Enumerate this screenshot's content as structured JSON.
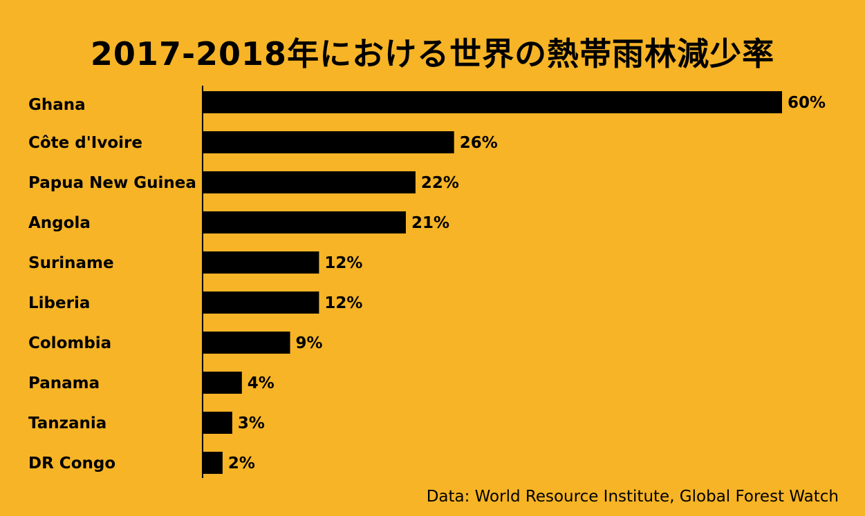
{
  "chart_data": {
    "type": "bar",
    "orientation": "horizontal",
    "title": "2017-2018年における世界の熱帯雨林減少率",
    "categories": [
      "Ghana",
      "Côte d'Ivoire",
      "Papua New Guinea",
      "Angola",
      "Suriname",
      "Liberia",
      "Colombia",
      "Panama",
      "Tanzania",
      "DR Congo"
    ],
    "values": [
      60,
      26,
      22,
      21,
      12,
      12,
      9,
      4,
      3,
      2
    ],
    "value_labels": [
      "60%",
      "26%",
      "22%",
      "21%",
      "12%",
      "12%",
      "9%",
      "4%",
      "3%",
      "2%"
    ],
    "xlim": [
      0,
      60
    ],
    "grid": false,
    "highlight_category": "Ghana",
    "bar_color": "#000000",
    "background_color": "#F6B426",
    "source": "Data: World Resource Institute, Global Forest Watch"
  }
}
